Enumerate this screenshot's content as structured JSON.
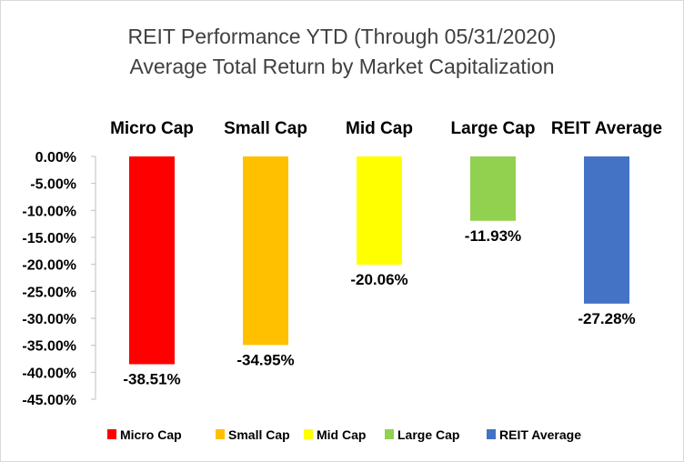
{
  "chart_data": {
    "type": "bar",
    "title": "REIT Performance YTD (Through 05/31/2020)",
    "subtitle": "Average Total Return by Market Capitalization",
    "categories": [
      "Micro Cap",
      "Small Cap",
      "Mid Cap",
      "Large Cap",
      "REIT Average"
    ],
    "values": [
      -38.51,
      -34.95,
      -20.06,
      -11.93,
      -27.28
    ],
    "data_labels": [
      "-38.51%",
      "-34.95%",
      "-20.06%",
      "-11.93%",
      "-27.28%"
    ],
    "colors": [
      "#ff0000",
      "#ffc000",
      "#ffff00",
      "#92d050",
      "#4472c4"
    ],
    "ylim": [
      -45,
      0
    ],
    "yticks": [
      0,
      -5,
      -10,
      -15,
      -20,
      -25,
      -30,
      -35,
      -40,
      -45
    ],
    "ytick_labels": [
      "0.00%",
      "-5.00%",
      "-10.00%",
      "-15.00%",
      "-20.00%",
      "-25.00%",
      "-30.00%",
      "-35.00%",
      "-40.00%",
      "-45.00%"
    ],
    "category_axis_position": "top",
    "grid": false,
    "legend": {
      "position": "bottom",
      "entries": [
        "Micro Cap",
        "Small Cap",
        "Mid Cap",
        "Large Cap",
        "REIT Average"
      ]
    }
  }
}
